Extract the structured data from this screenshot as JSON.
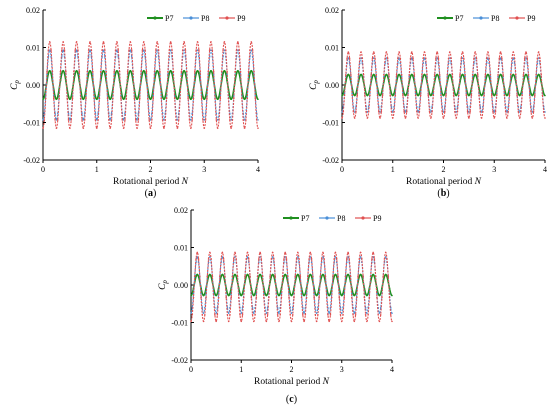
{
  "colors": {
    "P7": "#1f8f1f",
    "P8": "#4a8fd8",
    "P9": "#e05050"
  },
  "chart_data": [
    {
      "type": "line",
      "panel_label": "(a)",
      "xlabel": "Rotational period",
      "xlabel_var": "N",
      "ylabel": "C",
      "ylabel_sub": "p",
      "xlim": [
        0,
        4
      ],
      "ylim": [
        -0.02,
        0.02
      ],
      "xticks": [
        "0",
        "1",
        "2",
        "3",
        "4"
      ],
      "yticks": [
        "0.02",
        "0.01",
        "0.00",
        "-0.01",
        "-0.02"
      ],
      "legend": "top-right",
      "cycles_per_period": 4,
      "series": [
        {
          "name": "P7",
          "amplitude": 0.0038,
          "offset": 0.0,
          "phase": 0.0,
          "values_desc": "oscillates between approx -0.0038 and 0.0038"
        },
        {
          "name": "P8",
          "amplitude": 0.0093,
          "offset": 0.0,
          "phase": 0.0,
          "values_desc": "oscillates between approx -0.0093 and 0.0093"
        },
        {
          "name": "P9",
          "amplitude": 0.0115,
          "offset": 0.0,
          "phase": 0.0,
          "values_desc": "oscillates between approx -0.0115 and 0.0115"
        }
      ]
    },
    {
      "type": "line",
      "panel_label": "(b)",
      "xlabel": "Rotational period",
      "xlabel_var": "N",
      "ylabel": "C",
      "ylabel_sub": "p",
      "xlim": [
        0,
        4
      ],
      "ylim": [
        -0.02,
        0.02
      ],
      "xticks": [
        "0",
        "1",
        "2",
        "3",
        "4"
      ],
      "yticks": [
        "0.02",
        "0.01",
        "0.00",
        "-0.01",
        "-0.02"
      ],
      "legend": "top-right",
      "cycles_per_period": 4,
      "series": [
        {
          "name": "P7",
          "amplitude": 0.0028,
          "offset": 0.0,
          "phase": 0.0
        },
        {
          "name": "P8",
          "amplitude": 0.0072,
          "offset": 0.0,
          "phase": 0.0
        },
        {
          "name": "P9",
          "amplitude": 0.0088,
          "offset": 0.0,
          "phase": 0.0
        }
      ]
    },
    {
      "type": "line",
      "panel_label": "(c)",
      "xlabel": "Rotational period",
      "xlabel_var": "N",
      "ylabel": "C",
      "ylabel_sub": "p",
      "xlim": [
        0,
        4
      ],
      "ylim": [
        -0.02,
        0.02
      ],
      "xticks": [
        "0",
        "1",
        "2",
        "3",
        "4"
      ],
      "yticks": [
        "0.02",
        "0.01",
        "0.00",
        "-0.01",
        "-0.02"
      ],
      "legend": "top-right",
      "cycles_per_period": 4,
      "series": [
        {
          "name": "P7",
          "amplitude": 0.0028,
          "offset": 0.0,
          "phase": 0.0
        },
        {
          "name": "P8",
          "amplitude": 0.0075,
          "offset": 0.0,
          "phase": 0.0
        },
        {
          "name": "P9",
          "amplitude": 0.0092,
          "offset": -0.0005,
          "phase": 0.0
        }
      ]
    }
  ]
}
